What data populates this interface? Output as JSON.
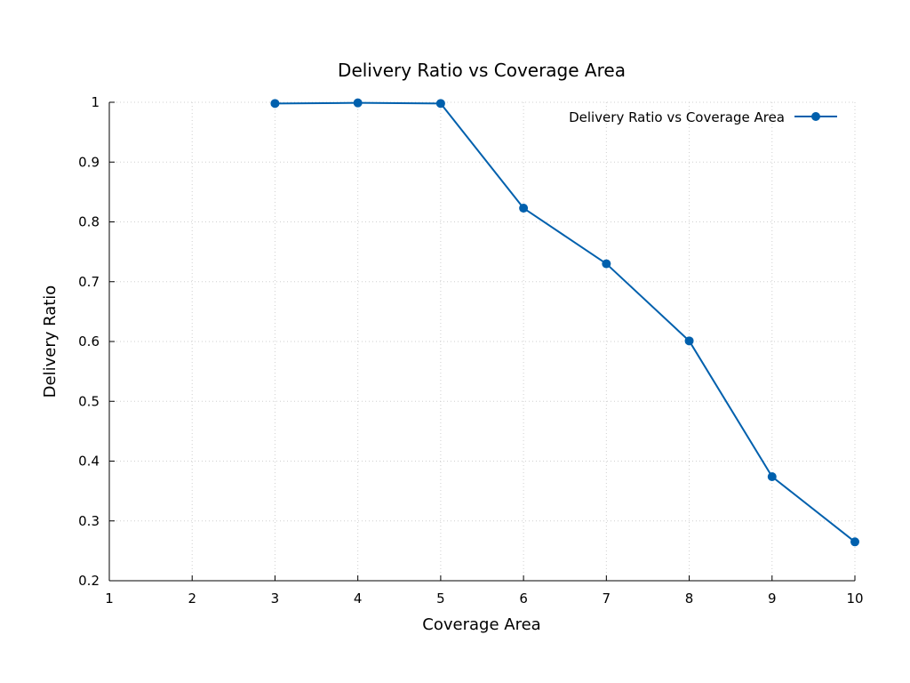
{
  "chart_data": {
    "type": "line",
    "title": "Delivery Ratio vs Coverage Area",
    "xlabel": "Coverage Area",
    "ylabel": "Delivery Ratio",
    "xlim": [
      1,
      10
    ],
    "ylim": [
      0.2,
      1
    ],
    "x_ticks": [
      "1",
      "2",
      "3",
      "4",
      "5",
      "6",
      "7",
      "8",
      "9",
      "10"
    ],
    "y_ticks": [
      "0.2",
      "0.3",
      "0.4",
      "0.5",
      "0.6",
      "0.7",
      "0.8",
      "0.9",
      "1"
    ],
    "grid": true,
    "legend_position": "top-right",
    "series": [
      {
        "name": "Delivery Ratio vs Coverage Area",
        "color": "#0060ad",
        "marker": "circle",
        "x": [
          3,
          4,
          5,
          6,
          7,
          8,
          9,
          10
        ],
        "y": [
          0.998,
          0.999,
          0.998,
          0.823,
          0.73,
          0.601,
          0.374,
          0.265
        ]
      }
    ]
  }
}
